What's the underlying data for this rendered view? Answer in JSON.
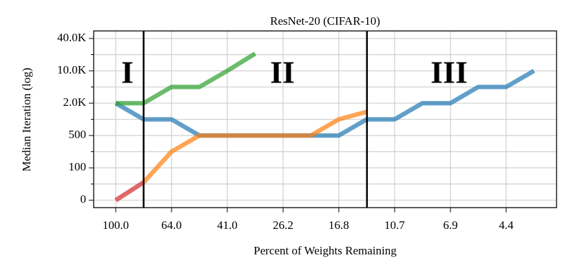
{
  "chart_data": {
    "type": "line",
    "title": "ResNet-20 (CIFAR-10)",
    "x_label": "Percent of Weights Remaining",
    "y_label": "Median Iteration (log)",
    "xscale": "log",
    "xlim": [
      119.3,
      2.94
    ],
    "xticks": [
      {
        "value": 100,
        "label": "100.0"
      },
      {
        "value": 64,
        "label": "64.0"
      },
      {
        "value": 40.96,
        "label": "41.0"
      },
      {
        "value": 26.21,
        "label": "26.2"
      },
      {
        "value": 16.78,
        "label": "16.8"
      },
      {
        "value": 10.74,
        "label": "10.7"
      },
      {
        "value": 6.87,
        "label": "6.9"
      },
      {
        "value": 4.4,
        "label": "4.4"
      }
    ],
    "ylim": [
      -23,
      47000
    ],
    "yticks": [
      0,
      100,
      500,
      {
        "value": 2000,
        "label": "2.0K"
      },
      {
        "value": 10000,
        "label": "10.0K"
      },
      {
        "value": 40000,
        "label": "40.0K"
      }
    ],
    "yminor": [
      50,
      300,
      1250,
      6000,
      25000
    ],
    "grid": true,
    "vlines": [
      80,
      13.4
    ],
    "annotations": [
      "I",
      "II",
      "III"
    ],
    "series": [
      {
        "color": "#1f77b4",
        "x": [
          100,
          80,
          64,
          51.2,
          40.96,
          32.77,
          26.21,
          20.97,
          16.78,
          13.42,
          10.74,
          8.59,
          6.87,
          5.5,
          4.4,
          3.52
        ],
        "values": [
          2000,
          1250,
          1250,
          500,
          500,
          500,
          500,
          500,
          500,
          1250,
          1250,
          2000,
          2000,
          6000,
          6000,
          10000
        ]
      },
      {
        "color": "#2ca02c",
        "x": [
          100,
          80,
          64,
          51.2,
          40.96,
          32.77
        ],
        "values": [
          2000,
          2000,
          6000,
          6000,
          10000,
          26000
        ]
      },
      {
        "color": "#ff7f0e",
        "x": [
          80,
          64,
          51.2,
          40.96,
          32.77,
          26.21,
          20.97,
          16.78,
          13.42
        ],
        "values": [
          55,
          300,
          500,
          500,
          500,
          500,
          500,
          1250,
          1600
        ]
      },
      {
        "color": "#d62728",
        "x": [
          100,
          80
        ],
        "values": [
          0,
          55
        ]
      }
    ]
  }
}
